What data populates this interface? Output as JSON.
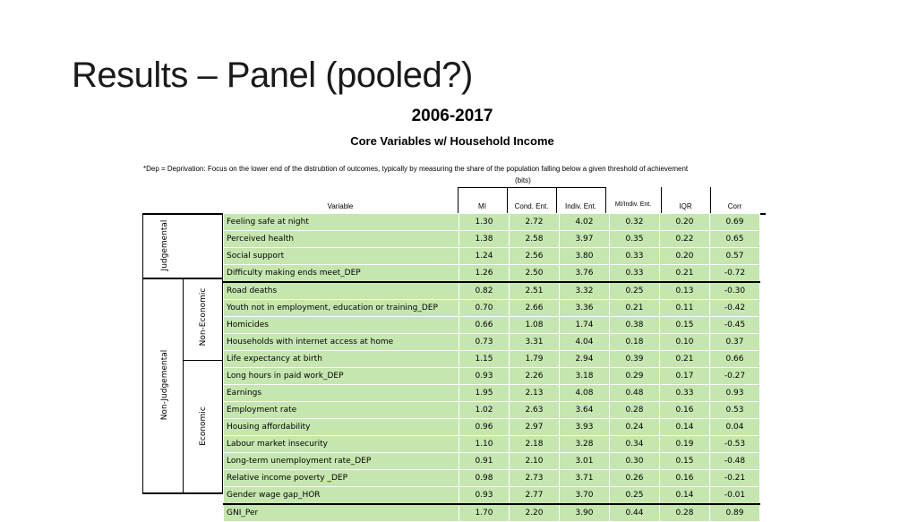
{
  "slide": {
    "title": "Results – Panel (pooled?)"
  },
  "figure": {
    "title": "2006-2017",
    "subtitle": "Core Variables w/ Household Income",
    "footnote": "*Dep = Deprivation: Focus on the lower end of the distrubtion of outcomes, typically by measuring the share of the population falling below a given threshold of achievement",
    "units": "(bits)"
  },
  "table": {
    "headers": {
      "variable": "Variable",
      "mi": "MI",
      "cond": "Cond. Ent.",
      "indiv": "Indiv. Ent.",
      "ratio": "MI/Indiv. Ent.",
      "iqr": "IQR",
      "corr": "Corr"
    },
    "groups": {
      "judgemental": "Judgemental",
      "non_judgemental": "Non-Judgemental",
      "non_economic": "Non-Economic",
      "economic": "Economic"
    },
    "rows": [
      {
        "variable": "Feeling safe at night",
        "mi": "1.30",
        "cond": "2.72",
        "indiv": "4.02",
        "ratio": "0.32",
        "iqr": "0.20",
        "corr": "0.69"
      },
      {
        "variable": "Perceived health",
        "mi": "1.38",
        "cond": "2.58",
        "indiv": "3.97",
        "ratio": "0.35",
        "iqr": "0.22",
        "corr": "0.65"
      },
      {
        "variable": "Social support",
        "mi": "1.24",
        "cond": "2.56",
        "indiv": "3.80",
        "ratio": "0.33",
        "iqr": "0.20",
        "corr": "0.57"
      },
      {
        "variable": "Difficulty making ends meet_DEP",
        "mi": "1.26",
        "cond": "2.50",
        "indiv": "3.76",
        "ratio": "0.33",
        "iqr": "0.21",
        "corr": "-0.72"
      },
      {
        "variable": "Road deaths",
        "mi": "0.82",
        "cond": "2.51",
        "indiv": "3.32",
        "ratio": "0.25",
        "iqr": "0.13",
        "corr": "-0.30"
      },
      {
        "variable": "Youth not in employment, education or training_DEP",
        "mi": "0.70",
        "cond": "2.66",
        "indiv": "3.36",
        "ratio": "0.21",
        "iqr": "0.11",
        "corr": "-0.42"
      },
      {
        "variable": "Homicides",
        "mi": "0.66",
        "cond": "1.08",
        "indiv": "1.74",
        "ratio": "0.38",
        "iqr": "0.15",
        "corr": "-0.45"
      },
      {
        "variable": "Households with internet access at home",
        "mi": "0.73",
        "cond": "3.31",
        "indiv": "4.04",
        "ratio": "0.18",
        "iqr": "0.10",
        "corr": "0.37"
      },
      {
        "variable": "Life expectancy at birth",
        "mi": "1.15",
        "cond": "1.79",
        "indiv": "2.94",
        "ratio": "0.39",
        "iqr": "0.21",
        "corr": "0.66"
      },
      {
        "variable": "Long hours in paid work_DEP",
        "mi": "0.93",
        "cond": "2.26",
        "indiv": "3.18",
        "ratio": "0.29",
        "iqr": "0.17",
        "corr": "-0.27"
      },
      {
        "variable": "Earnings",
        "mi": "1.95",
        "cond": "2.13",
        "indiv": "4.08",
        "ratio": "0.48",
        "iqr": "0.33",
        "corr": "0.93"
      },
      {
        "variable": "Employment rate",
        "mi": "1.02",
        "cond": "2.63",
        "indiv": "3.64",
        "ratio": "0.28",
        "iqr": "0.16",
        "corr": "0.53"
      },
      {
        "variable": "Housing affordability",
        "mi": "0.96",
        "cond": "2.97",
        "indiv": "3.93",
        "ratio": "0.24",
        "iqr": "0.14",
        "corr": "0.04"
      },
      {
        "variable": "Labour market insecurity",
        "mi": "1.10",
        "cond": "2.18",
        "indiv": "3.28",
        "ratio": "0.34",
        "iqr": "0.19",
        "corr": "-0.53"
      },
      {
        "variable": "Long-term unemployment rate_DEP",
        "mi": "0.91",
        "cond": "2.10",
        "indiv": "3.01",
        "ratio": "0.30",
        "iqr": "0.15",
        "corr": "-0.48"
      },
      {
        "variable": "Relative income poverty _DEP",
        "mi": "0.98",
        "cond": "2.73",
        "indiv": "3.71",
        "ratio": "0.26",
        "iqr": "0.16",
        "corr": "-0.21"
      },
      {
        "variable": "Gender wage gap_HOR",
        "mi": "0.93",
        "cond": "2.77",
        "indiv": "3.70",
        "ratio": "0.25",
        "iqr": "0.14",
        "corr": "-0.01"
      },
      {
        "variable": "GNI_Per",
        "mi": "1.70",
        "cond": "2.20",
        "indiv": "3.90",
        "ratio": "0.44",
        "iqr": "0.28",
        "corr": "0.89"
      }
    ],
    "cell_color": "#c6e6b0"
  }
}
